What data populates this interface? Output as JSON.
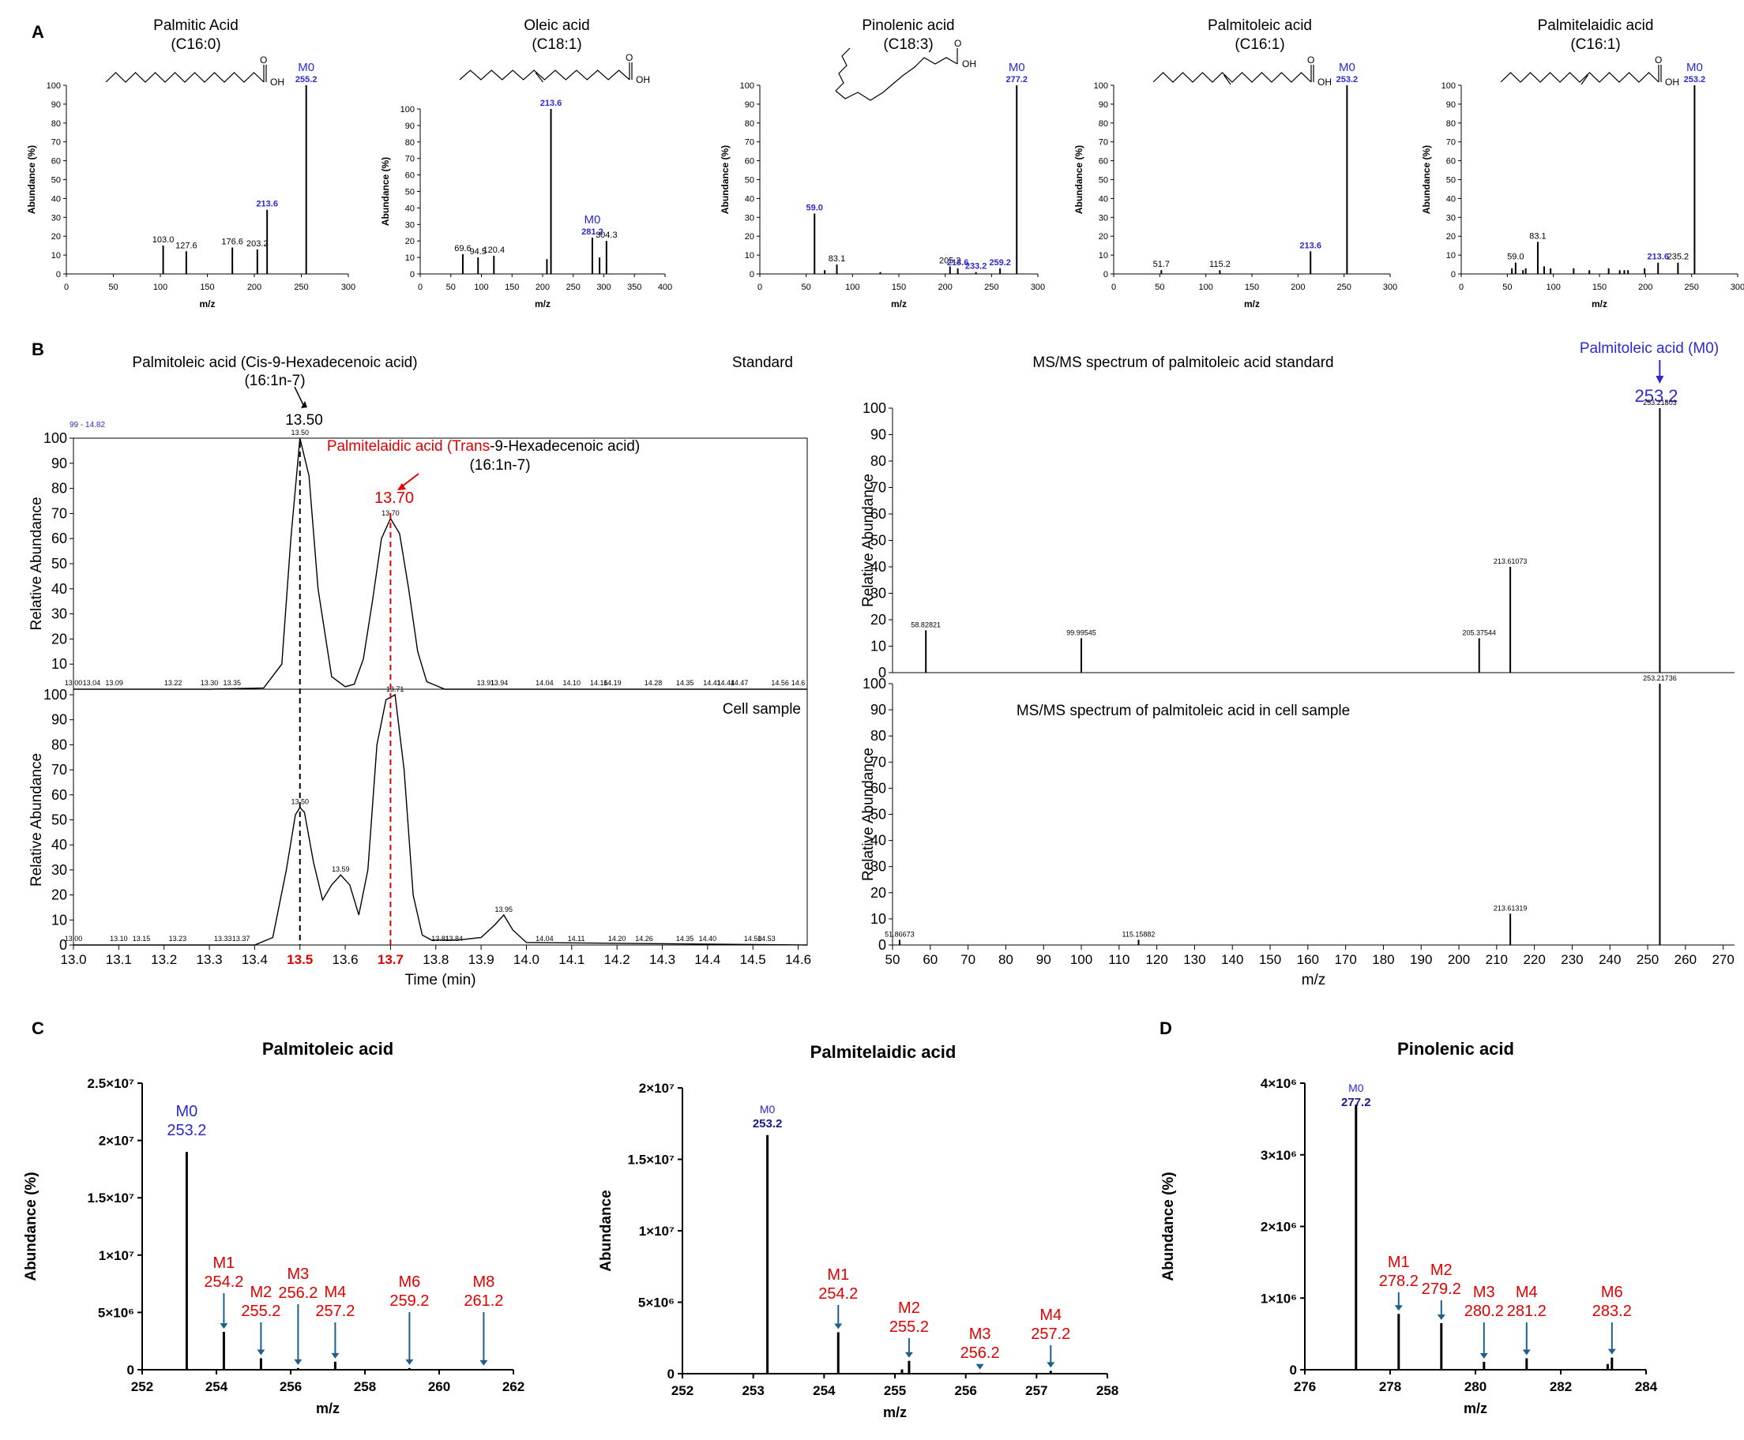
{
  "panel_letters": {
    "A": "A",
    "B": "B",
    "C": "C",
    "D": "D"
  },
  "panel_a": [
    {
      "title": "Palmitic Acid",
      "subtitle": "(C16:0)",
      "xlabel": "m/z",
      "ylabel": "Abundance (%)",
      "xlim": [
        0,
        300
      ],
      "xticks": [
        0,
        50,
        100,
        150,
        200,
        250,
        300
      ],
      "ylim": [
        0,
        100
      ],
      "yticks": [
        0,
        10,
        20,
        30,
        40,
        50,
        60,
        70,
        80,
        90,
        100
      ],
      "structure": "saturated",
      "m0": {
        "label": "M0",
        "value": "255.2"
      }
    },
    {
      "title": "Oleic acid",
      "subtitle": "(C18:1)",
      "xlabel": "m/z",
      "ylabel": "Abundance (%)",
      "xlim": [
        0,
        400
      ],
      "xticks": [
        0,
        50,
        100,
        150,
        200,
        250,
        300,
        350,
        400
      ],
      "ylim": [
        0,
        100
      ],
      "yticks": [
        0,
        10,
        20,
        30,
        40,
        50,
        60,
        70,
        80,
        90,
        100
      ],
      "structure": "cis",
      "m0": {
        "label": "M0",
        "value": "281.2"
      }
    },
    {
      "title": "Pinolenic acid",
      "subtitle": "(C18:3)",
      "xlabel": "m/z",
      "ylabel": "Abundance (%)",
      "xlim": [
        0,
        300
      ],
      "xticks": [
        0,
        50,
        100,
        150,
        200,
        250,
        300
      ],
      "ylim": [
        0,
        100
      ],
      "yticks": [
        0,
        10,
        20,
        30,
        40,
        50,
        60,
        70,
        80,
        90,
        100
      ],
      "structure": "pinolenic",
      "m0": {
        "label": "M0",
        "value": "277.2"
      }
    },
    {
      "title": "Palmitoleic acid",
      "subtitle": "(C16:1)",
      "xlabel": "m/z",
      "ylabel": "Abundance (%)",
      "xlim": [
        0,
        300
      ],
      "xticks": [
        0,
        50,
        100,
        150,
        200,
        250,
        300
      ],
      "ylim": [
        0,
        100
      ],
      "yticks": [
        0,
        10,
        20,
        30,
        40,
        50,
        60,
        70,
        80,
        90,
        100
      ],
      "structure": "cis",
      "m0": {
        "label": "M0",
        "value": "253.2"
      }
    },
    {
      "title": "Palmitelaidic acid",
      "subtitle": "(C16:1)",
      "xlabel": "m/z",
      "ylabel": "Abundance (%)",
      "xlim": [
        0,
        300
      ],
      "xticks": [
        0,
        50,
        100,
        150,
        200,
        250,
        300
      ],
      "ylim": [
        0,
        100
      ],
      "yticks": [
        0,
        10,
        20,
        30,
        40,
        50,
        60,
        70,
        80,
        90,
        100
      ],
      "structure": "trans",
      "m0": {
        "label": "M0",
        "value": "253.2"
      }
    }
  ],
  "panel_b": {
    "chromatogram": {
      "ann_cis_line1": "Palmitoleic acid (Cis-9-Hexadecenoic acid)",
      "ann_cis_line2": "(16:1n-7)",
      "ann_cis_rt": "13.50",
      "ann_trans_name1": "Palmitelaidic acid (",
      "ann_trans_name_red": "Trans",
      "ann_trans_name2": "-9-Hexadecenoic acid)",
      "ann_trans_line2": "(16:1n-7)",
      "ann_trans_rt": "13.70",
      "range_label": "99 - 14.82",
      "standard_label": "Standard",
      "cell_label": "Cell sample",
      "xlabel": "Time (min)",
      "ylabel": "Relative Abundance",
      "xlim": [
        13.0,
        14.62
      ],
      "xticks": [
        "13.0",
        "13.1",
        "13.2",
        "13.3",
        "13.4",
        "13.5",
        "13.6",
        "13.7",
        "13.8",
        "13.9",
        "14.0",
        "14.1",
        "14.2",
        "14.3",
        "14.4",
        "14.5",
        "14.6"
      ],
      "highlight_ticks": [
        "13.5",
        "13.7"
      ],
      "ylim": [
        0,
        100
      ],
      "yticks": [
        0,
        10,
        20,
        30,
        40,
        50,
        60,
        70,
        80,
        90,
        100
      ]
    },
    "msms": {
      "title_top": "MS/MS spectrum of palmitoleic acid standard",
      "title_bottom": "MS/MS spectrum of palmitoleic acid in cell sample",
      "m0_label": "Palmitoleic acid (M0)",
      "m0_value": "253.2",
      "xlabel": "m/z",
      "ylabel": "Relative Abundance",
      "xlim": [
        50,
        273
      ],
      "xticks": [
        50,
        60,
        70,
        80,
        90,
        100,
        110,
        120,
        130,
        140,
        150,
        160,
        170,
        180,
        190,
        200,
        210,
        220,
        230,
        240,
        250,
        260,
        270
      ],
      "ylim": [
        0,
        100
      ],
      "yticks": [
        0,
        10,
        20,
        30,
        40,
        50,
        60,
        70,
        80,
        90,
        100
      ]
    }
  },
  "panel_c": [
    {
      "title": "Palmitoleic acid",
      "xlabel": "m/z",
      "ylabel": "Abundance (%)",
      "xlim": [
        252,
        262
      ],
      "xticks": [
        "252",
        "254",
        "256",
        "258",
        "260",
        "262"
      ],
      "ylim": [
        0,
        25000000
      ],
      "yticks": [
        {
          "v": 0,
          "t": "0"
        },
        {
          "v": 5000000,
          "t": "5×10⁶"
        },
        {
          "v": 10000000,
          "t": "1×10⁷"
        },
        {
          "v": 15000000,
          "t": "1.5×10⁷"
        },
        {
          "v": 20000000,
          "t": "2×10⁷"
        },
        {
          "v": 25000000,
          "t": "2.5×10⁷"
        }
      ]
    },
    {
      "title": "Palmitelaidic acid",
      "xlabel": "m/z",
      "ylabel": "Abundance",
      "xlim": [
        252,
        258
      ],
      "xticks": [
        "252",
        "253",
        "254",
        "255",
        "256",
        "257",
        "258"
      ],
      "ylim": [
        0,
        20000000
      ],
      "yticks": [
        {
          "v": 0,
          "t": "0"
        },
        {
          "v": 5000000,
          "t": "5×10⁶"
        },
        {
          "v": 10000000,
          "t": "1×10⁷"
        },
        {
          "v": 15000000,
          "t": "1.5×10⁷"
        },
        {
          "v": 20000000,
          "t": "2×10⁷"
        }
      ]
    }
  ],
  "panel_d": {
    "title": "Pinolenic acid",
    "xlabel": "m/z",
    "ylabel": "Abundance (%)",
    "xlim": [
      276,
      284
    ],
    "xticks": [
      "276",
      "278",
      "280",
      "282",
      "284"
    ],
    "ylim": [
      0,
      4000000
    ],
    "yticks": [
      {
        "v": 0,
        "t": "0"
      },
      {
        "v": 1000000,
        "t": "1×10⁶"
      },
      {
        "v": 2000000,
        "t": "2×10⁶"
      },
      {
        "v": 3000000,
        "t": "3×10⁶"
      },
      {
        "v": 4000000,
        "t": "4×10⁶"
      }
    ]
  },
  "chart_data": [
    {
      "type": "bar",
      "panel": "A1",
      "title": "Palmitic Acid (C16:0)",
      "x": [
        103.0,
        127.6,
        176.6,
        203.2,
        213.6,
        255.2
      ],
      "values": [
        15,
        12,
        14,
        13,
        34,
        100
      ],
      "labels": [
        "103.0",
        "127.6",
        "176.6",
        "203.2",
        "213.6",
        "255.2"
      ],
      "label_colors": [
        "#000000",
        "#000000",
        "#000000",
        "#000000",
        "#2a2ad0",
        "#2a2ad0"
      ]
    },
    {
      "type": "bar",
      "panel": "A2",
      "title": "Oleic acid (C18:1)",
      "x": [
        69.6,
        94.5,
        120.4,
        207,
        213.6,
        281.2,
        293,
        304.3
      ],
      "values": [
        12,
        10,
        11,
        9,
        100,
        22,
        10,
        20
      ],
      "labels": [
        "69.6",
        "94.5",
        "120.4",
        "",
        "213.6",
        "281.2",
        "",
        "304.3"
      ],
      "label_colors": [
        "#000000",
        "#000000",
        "#000000",
        "#000000",
        "#2a2ad0",
        "#2a2ad0",
        "#000000",
        "#000000"
      ]
    },
    {
      "type": "bar",
      "panel": "A3",
      "title": "Pinolenic acid (C18:3)",
      "x": [
        59.0,
        70,
        83.1,
        130,
        205.2,
        213.6,
        233.2,
        259.2,
        277.2
      ],
      "values": [
        32,
        2,
        5,
        1,
        4,
        3,
        1,
        3,
        100
      ],
      "labels": [
        "59.0",
        "",
        "83.1",
        "",
        "205.2",
        "213.6",
        "233.2",
        "259.2",
        "277.2"
      ],
      "label_colors": [
        "#2a2ad0",
        "#000000",
        "#000000",
        "#000000",
        "#000000",
        "#2a2ad0",
        "#2a2ad0",
        "#2a2ad0",
        "#2a2ad0"
      ]
    },
    {
      "type": "bar",
      "panel": "A4",
      "title": "Palmitoleic acid (C16:1)",
      "x": [
        51.7,
        115.2,
        213.6,
        253.2
      ],
      "values": [
        2,
        2,
        12,
        100
      ],
      "labels": [
        "51.7",
        "115.2",
        "213.6",
        "253.2"
      ],
      "label_colors": [
        "#000000",
        "#000000",
        "#2a2ad0",
        "#2a2ad0"
      ]
    },
    {
      "type": "bar",
      "panel": "A5",
      "title": "Palmitelaidic acid (C16:1)",
      "x": [
        55,
        59.0,
        67,
        70,
        83.1,
        90,
        97,
        122,
        139,
        160,
        172,
        177,
        181,
        199,
        213.6,
        235.2,
        253.2
      ],
      "values": [
        3,
        6,
        2,
        3,
        17,
        4,
        3,
        3,
        2,
        3,
        2,
        2,
        2,
        3,
        6,
        6,
        100
      ],
      "labels": [
        "",
        "59.0",
        "",
        "",
        "83.1",
        "",
        "",
        "",
        "",
        "",
        "",
        "",
        "",
        "",
        "213.6",
        "235.2",
        "253.2"
      ],
      "label_colors": [
        "#000000",
        "#000000",
        "#000000",
        "#000000",
        "#000000",
        "#000000",
        "#000000",
        "#000000",
        "#000000",
        "#000000",
        "#000000",
        "#000000",
        "#000000",
        "#000000",
        "#2a2ad0",
        "#000000",
        "#2a2ad0"
      ]
    },
    {
      "type": "line",
      "panel": "B-standard",
      "title": "Standard",
      "x": [
        13.0,
        13.3,
        13.42,
        13.46,
        13.48,
        13.5,
        13.52,
        13.54,
        13.57,
        13.6,
        13.62,
        13.64,
        13.66,
        13.68,
        13.7,
        13.72,
        13.74,
        13.76,
        13.78,
        13.82,
        14.0,
        14.62
      ],
      "y": [
        0,
        0,
        0.5,
        10,
        60,
        100,
        85,
        40,
        5,
        1,
        2,
        12,
        35,
        60,
        68,
        62,
        40,
        15,
        3,
        0,
        0,
        0
      ],
      "peak_labels": [
        {
          "x": 13.5,
          "label": "13.50"
        },
        {
          "x": 13.7,
          "label": "13.70"
        }
      ],
      "baseline_labels": [
        "13.00",
        "13.04",
        "13.09",
        "13.22",
        "13.30",
        "13.35",
        "13.91",
        "13.94",
        "14.04",
        "14.10",
        "14.16",
        "14.19",
        "14.28",
        "14.35",
        "14.41",
        "14.44",
        "14.47",
        "14.56",
        "14.6"
      ]
    },
    {
      "type": "line",
      "panel": "B-cell",
      "title": "Cell sample",
      "x": [
        13.0,
        13.4,
        13.44,
        13.47,
        13.49,
        13.5,
        13.51,
        13.53,
        13.55,
        13.57,
        13.59,
        13.61,
        13.63,
        13.65,
        13.67,
        13.69,
        13.71,
        13.73,
        13.75,
        13.77,
        13.79,
        13.85,
        13.9,
        13.93,
        13.95,
        13.97,
        14.0,
        14.62
      ],
      "y": [
        0,
        0,
        3,
        30,
        52,
        55,
        53,
        33,
        18,
        24,
        28,
        24,
        12,
        30,
        80,
        98,
        100,
        70,
        20,
        4,
        2,
        2,
        3,
        8,
        12,
        6,
        1,
        0
      ],
      "peak_labels": [
        {
          "x": 13.5,
          "label": "13.50"
        },
        {
          "x": 13.59,
          "label": "13.59"
        },
        {
          "x": 13.71,
          "label": "13.71"
        },
        {
          "x": 13.95,
          "label": "13.95"
        }
      ],
      "baseline_labels": [
        "13.00",
        "13.10",
        "13.15",
        "13.23",
        "13.33",
        "13.37",
        "13.81",
        "13.84",
        "14.04",
        "14.11",
        "14.20",
        "14.26",
        "14.35",
        "14.40",
        "14.50",
        "14.53"
      ]
    },
    {
      "type": "bar",
      "panel": "B-msms-standard",
      "title": "MS/MS spectrum of palmitoleic acid standard",
      "x": [
        58.82821,
        99.99545,
        205.37544,
        213.61073,
        253.21803
      ],
      "values": [
        16,
        13,
        13,
        40,
        100
      ],
      "labels": [
        "58.82821",
        "99.99545",
        "205.37544",
        "213.61073",
        "253.21803"
      ]
    },
    {
      "type": "bar",
      "panel": "B-msms-cell",
      "title": "MS/MS spectrum of palmitoleic acid in cell sample",
      "x": [
        51.86673,
        115.15882,
        213.61319,
        253.21736
      ],
      "values": [
        2,
        2,
        12,
        100
      ],
      "labels": [
        "51.86673",
        "115.15882",
        "213.61319",
        "253.21736"
      ]
    },
    {
      "type": "bar",
      "panel": "C-palmitoleic",
      "title": "Palmitoleic acid",
      "x": [
        253.2,
        254.2,
        255.2,
        256.2,
        257.2,
        259.2,
        261.2
      ],
      "values": [
        19000000,
        3300000,
        1000000,
        150000,
        700000,
        150000,
        80000
      ],
      "labels": [
        "M0\n253.2",
        "M1\n254.2",
        "M2\n255.2",
        "M3\n256.2",
        "M4\n257.2",
        "M6\n259.2",
        "M8\n261.2"
      ]
    },
    {
      "type": "bar",
      "panel": "C-palmitelaidic",
      "title": "Palmitelaidic acid",
      "x": [
        253.2,
        254.2,
        255.1,
        255.2,
        256.2,
        257.2
      ],
      "values": [
        16700000,
        2900000,
        300000,
        900000,
        70000,
        200000
      ],
      "labels": [
        "M0\n253.2",
        "M1\n254.2",
        "",
        "M2\n255.2",
        "M3\n256.2",
        "M4\n257.2"
      ]
    },
    {
      "type": "bar",
      "panel": "D-pinolenic",
      "title": "Pinolenic acid",
      "x": [
        277.2,
        278.2,
        279.2,
        280.2,
        281.2,
        282.5,
        283.1,
        283.2
      ],
      "values": [
        3700000,
        780000,
        650000,
        110000,
        160000,
        10000,
        80000,
        170000
      ],
      "labels": [
        "M0\n277.2",
        "M1\n278.2",
        "M2\n279.2",
        "M3\n280.2",
        "M4\n281.2",
        "",
        "",
        "M6\n283.2"
      ]
    }
  ]
}
